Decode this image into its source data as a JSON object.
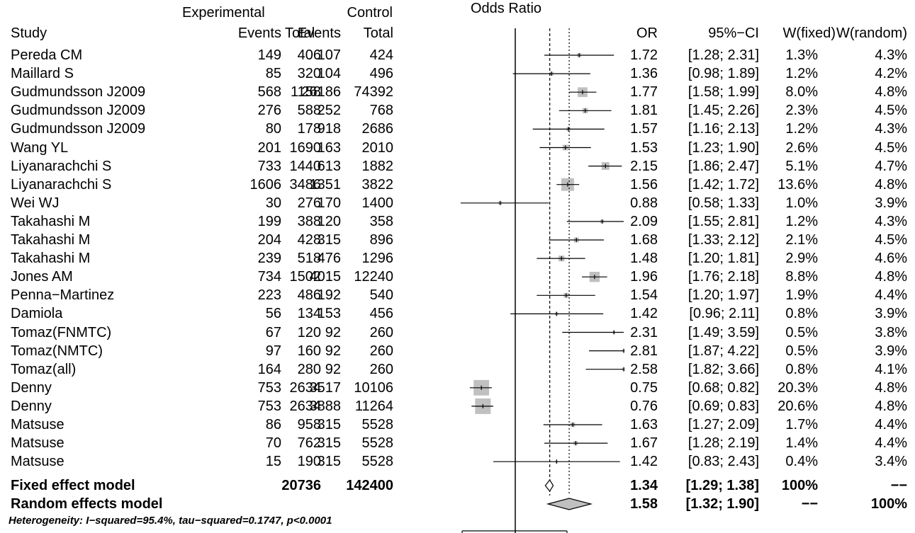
{
  "header": {
    "group_experimental": "Experimental",
    "group_control": "Control",
    "study": "Study",
    "events": "Events",
    "total": "Total",
    "plot_title": "Odds Ratio",
    "or": "OR",
    "ci": "95%−CI",
    "w_fixed": "W(fixed)",
    "w_random": "W(random)"
  },
  "studies": [
    {
      "study": "Pereda CM",
      "e_events": "149",
      "e_total": "406",
      "c_events": "107",
      "c_total": "424",
      "or": "1.72",
      "ci": "[1.28; 2.31]",
      "w_fixed": "1.3%",
      "w_random": "4.3%"
    },
    {
      "study": "Maillard S",
      "e_events": "85",
      "e_total": "320",
      "c_events": "104",
      "c_total": "496",
      "or": "1.36",
      "ci": "[0.98; 1.89]",
      "w_fixed": "1.2%",
      "w_random": "4.2%"
    },
    {
      "study": "Gudmundsson J2009",
      "e_events": "568",
      "e_total": "1158",
      "c_events": "26186",
      "c_total": "74392",
      "or": "1.77",
      "ci": "[1.58; 1.99]",
      "w_fixed": "8.0%",
      "w_random": "4.8%"
    },
    {
      "study": "Gudmundsson J2009",
      "e_events": "276",
      "e_total": "588",
      "c_events": "252",
      "c_total": "768",
      "or": "1.81",
      "ci": "[1.45; 2.26]",
      "w_fixed": "2.3%",
      "w_random": "4.5%"
    },
    {
      "study": "Gudmundsson J2009",
      "e_events": "80",
      "e_total": "178",
      "c_events": "918",
      "c_total": "2686",
      "or": "1.57",
      "ci": "[1.16; 2.13]",
      "w_fixed": "1.2%",
      "w_random": "4.3%"
    },
    {
      "study": "Wang YL",
      "e_events": "201",
      "e_total": "1690",
      "c_events": "163",
      "c_total": "2010",
      "or": "1.53",
      "ci": "[1.23; 1.90]",
      "w_fixed": "2.6%",
      "w_random": "4.5%"
    },
    {
      "study": "Liyanarachchi S",
      "e_events": "733",
      "e_total": "1440",
      "c_events": "613",
      "c_total": "1882",
      "or": "2.15",
      "ci": "[1.86; 2.47]",
      "w_fixed": "5.1%",
      "w_random": "4.7%"
    },
    {
      "study": "Liyanarachchi S",
      "e_events": "1606",
      "e_total": "3486",
      "c_events": "1351",
      "c_total": "3822",
      "or": "1.56",
      "ci": "[1.42; 1.72]",
      "w_fixed": "13.6%",
      "w_random": "4.8%"
    },
    {
      "study": "Wei WJ",
      "e_events": "30",
      "e_total": "276",
      "c_events": "170",
      "c_total": "1400",
      "or": "0.88",
      "ci": "[0.58; 1.33]",
      "w_fixed": "1.0%",
      "w_random": "3.9%"
    },
    {
      "study": "Takahashi M",
      "e_events": "199",
      "e_total": "388",
      "c_events": "120",
      "c_total": "358",
      "or": "2.09",
      "ci": "[1.55; 2.81]",
      "w_fixed": "1.2%",
      "w_random": "4.3%"
    },
    {
      "study": "Takahashi M",
      "e_events": "204",
      "e_total": "428",
      "c_events": "315",
      "c_total": "896",
      "or": "1.68",
      "ci": "[1.33; 2.12]",
      "w_fixed": "2.1%",
      "w_random": "4.5%"
    },
    {
      "study": "Takahashi M",
      "e_events": "239",
      "e_total": "518",
      "c_events": "476",
      "c_total": "1296",
      "or": "1.48",
      "ci": "[1.20; 1.81]",
      "w_fixed": "2.9%",
      "w_random": "4.6%"
    },
    {
      "study": "Jones AM",
      "e_events": "734",
      "e_total": "1502",
      "c_events": "4015",
      "c_total": "12240",
      "or": "1.96",
      "ci": "[1.76; 2.18]",
      "w_fixed": "8.8%",
      "w_random": "4.8%"
    },
    {
      "study": "Penna−Martinez",
      "e_events": "223",
      "e_total": "486",
      "c_events": "192",
      "c_total": "540",
      "or": "1.54",
      "ci": "[1.20; 1.97]",
      "w_fixed": "1.9%",
      "w_random": "4.4%"
    },
    {
      "study": "Damiola",
      "e_events": "56",
      "e_total": "134",
      "c_events": "153",
      "c_total": "456",
      "or": "1.42",
      "ci": "[0.96; 2.11]",
      "w_fixed": "0.8%",
      "w_random": "3.9%"
    },
    {
      "study": "Tomaz(FNMTC)",
      "e_events": "67",
      "e_total": "120",
      "c_events": "92",
      "c_total": "260",
      "or": "2.31",
      "ci": "[1.49; 3.59]",
      "w_fixed": "0.5%",
      "w_random": "3.8%"
    },
    {
      "study": "Tomaz(NMTC)",
      "e_events": "97",
      "e_total": "160",
      "c_events": "92",
      "c_total": "260",
      "or": "2.81",
      "ci": "[1.87; 4.22]",
      "w_fixed": "0.5%",
      "w_random": "3.9%"
    },
    {
      "study": "Tomaz(all)",
      "e_events": "164",
      "e_total": "280",
      "c_events": "92",
      "c_total": "260",
      "or": "2.58",
      "ci": "[1.82; 3.66]",
      "w_fixed": "0.8%",
      "w_random": "4.1%"
    },
    {
      "study": "Denny",
      "e_events": "753",
      "e_total": "2634",
      "c_events": "3517",
      "c_total": "10106",
      "or": "0.75",
      "ci": "[0.68; 0.82]",
      "w_fixed": "20.3%",
      "w_random": "4.8%"
    },
    {
      "study": "Denny",
      "e_events": "753",
      "e_total": "2634",
      "c_events": "3888",
      "c_total": "11264",
      "or": "0.76",
      "ci": "[0.69; 0.83]",
      "w_fixed": "20.6%",
      "w_random": "4.8%"
    },
    {
      "study": "Matsuse",
      "e_events": "86",
      "e_total": "958",
      "c_events": "315",
      "c_total": "5528",
      "or": "1.63",
      "ci": "[1.27; 2.09]",
      "w_fixed": "1.7%",
      "w_random": "4.4%"
    },
    {
      "study": "Matsuse",
      "e_events": "70",
      "e_total": "762",
      "c_events": "315",
      "c_total": "5528",
      "or": "1.67",
      "ci": "[1.28; 2.19]",
      "w_fixed": "1.4%",
      "w_random": "4.4%"
    },
    {
      "study": "Matsuse",
      "e_events": "15",
      "e_total": "190",
      "c_events": "315",
      "c_total": "5528",
      "or": "1.42",
      "ci": "[0.83; 2.43]",
      "w_fixed": "0.4%",
      "w_random": "3.4%"
    }
  ],
  "fixed_model": {
    "label": "Fixed effect model",
    "e_total": "20736",
    "c_total": "142400",
    "or": "1.34",
    "ci": "[1.29; 1.38]",
    "w_fixed": "100%",
    "w_random": "−−"
  },
  "random_model": {
    "label": "Random effects model",
    "or": "1.58",
    "ci": "[1.32; 1.90]",
    "w_fixed": "−−",
    "w_random": "100%"
  },
  "heterogeneity": "Heterogeneity: I−squared=95.4%, tau−squared=0.1747, p<0.0001",
  "chart_data": {
    "type": "forest",
    "title": "Odds Ratio",
    "scale": "log",
    "null_line": 1,
    "xlim": [
      0.75,
      2.81
    ],
    "studies": [
      {
        "or": 1.72,
        "lo": 1.28,
        "hi": 2.31,
        "w": 1.3
      },
      {
        "or": 1.36,
        "lo": 0.98,
        "hi": 1.89,
        "w": 1.2
      },
      {
        "or": 1.77,
        "lo": 1.58,
        "hi": 1.99,
        "w": 8.0
      },
      {
        "or": 1.81,
        "lo": 1.45,
        "hi": 2.26,
        "w": 2.3
      },
      {
        "or": 1.57,
        "lo": 1.16,
        "hi": 2.13,
        "w": 1.2
      },
      {
        "or": 1.53,
        "lo": 1.23,
        "hi": 1.9,
        "w": 2.6
      },
      {
        "or": 2.15,
        "lo": 1.86,
        "hi": 2.47,
        "w": 5.1
      },
      {
        "or": 1.56,
        "lo": 1.42,
        "hi": 1.72,
        "w": 13.6
      },
      {
        "or": 0.88,
        "lo": 0.58,
        "hi": 1.33,
        "w": 1.0
      },
      {
        "or": 2.09,
        "lo": 1.55,
        "hi": 2.81,
        "w": 1.2
      },
      {
        "or": 1.68,
        "lo": 1.33,
        "hi": 2.12,
        "w": 2.1
      },
      {
        "or": 1.48,
        "lo": 1.2,
        "hi": 1.81,
        "w": 2.9
      },
      {
        "or": 1.96,
        "lo": 1.76,
        "hi": 2.18,
        "w": 8.8
      },
      {
        "or": 1.54,
        "lo": 1.2,
        "hi": 1.97,
        "w": 1.9
      },
      {
        "or": 1.42,
        "lo": 0.96,
        "hi": 2.11,
        "w": 0.8
      },
      {
        "or": 2.31,
        "lo": 1.49,
        "hi": 3.59,
        "w": 0.5
      },
      {
        "or": 2.81,
        "lo": 1.87,
        "hi": 4.22,
        "w": 0.5
      },
      {
        "or": 2.58,
        "lo": 1.82,
        "hi": 3.66,
        "w": 0.8
      },
      {
        "or": 0.75,
        "lo": 0.68,
        "hi": 0.82,
        "w": 20.3
      },
      {
        "or": 0.76,
        "lo": 0.69,
        "hi": 0.83,
        "w": 20.6
      },
      {
        "or": 1.63,
        "lo": 1.27,
        "hi": 2.09,
        "w": 1.7
      },
      {
        "or": 1.67,
        "lo": 1.28,
        "hi": 2.19,
        "w": 1.4
      },
      {
        "or": 1.42,
        "lo": 0.83,
        "hi": 2.43,
        "w": 0.4
      }
    ],
    "fixed": {
      "or": 1.34,
      "lo": 1.29,
      "hi": 1.38
    },
    "random": {
      "or": 1.58,
      "lo": 1.32,
      "hi": 1.9
    },
    "colors": {
      "box": "#c0c0c0",
      "line": "#000000"
    }
  }
}
